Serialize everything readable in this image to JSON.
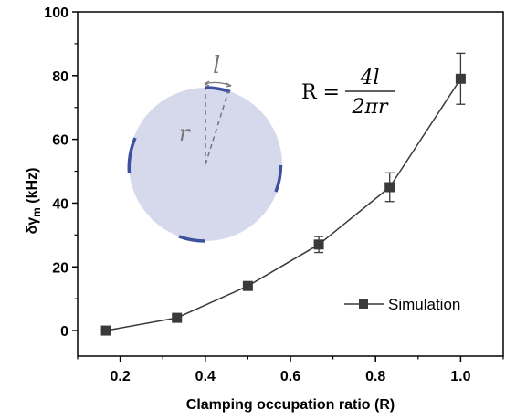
{
  "chart_data": {
    "type": "line",
    "title": "",
    "xlabel": "Clamping occupation ratio (R)",
    "ylabel_main": "δγ",
    "ylabel_sub": "m",
    "ylabel_unit": " (kHz)",
    "xlim": [
      0.1,
      1.1
    ],
    "ylim": [
      -8,
      100
    ],
    "xticks": [
      0.2,
      0.4,
      0.6,
      0.8,
      1.0
    ],
    "xtick_labels": [
      "0.2",
      "0.4",
      "0.6",
      "0.8",
      "1.0"
    ],
    "yticks": [
      0,
      20,
      40,
      60,
      80,
      100
    ],
    "ytick_labels": [
      "0",
      "20",
      "40",
      "60",
      "80",
      "100"
    ],
    "grid": false,
    "legend_position": "bottom-right",
    "series": [
      {
        "name": "Simulation",
        "color": "#3a3a3a",
        "marker": "square",
        "x": [
          0.1667,
          0.3333,
          0.5,
          0.6667,
          0.8333,
          1.0
        ],
        "y": [
          0,
          4,
          14,
          27,
          45,
          79
        ],
        "yerr": [
          0,
          0,
          0,
          2.5,
          4.5,
          8
        ]
      }
    ]
  },
  "inset": {
    "circle_color": "#d6d9ec",
    "clamp_color": "#3d4fa0",
    "arc_label": "l",
    "radius_label": "r"
  },
  "formula": {
    "lhs": "R =",
    "numerator": "4l",
    "denominator": "2πr"
  }
}
